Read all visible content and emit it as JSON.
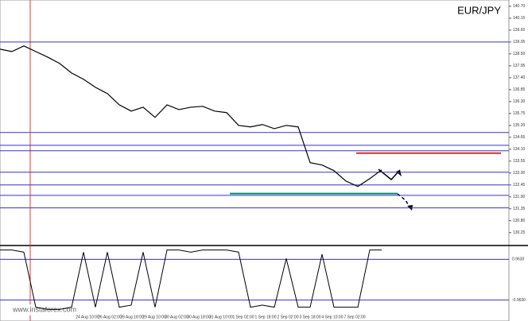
{
  "chart_data": {
    "type": "line",
    "title": "EUR/JPY",
    "watermark": "www.instaforex.com",
    "series": [
      {
        "name": "EUR/JPY",
        "color": "#000000",
        "values": [
          138.72,
          138.61,
          138.87,
          138.61,
          138.35,
          138.06,
          137.62,
          137.33,
          136.96,
          136.67,
          136.15,
          135.86,
          136.04,
          135.57,
          136.15,
          135.93,
          136.04,
          136.08,
          135.86,
          135.79,
          135.2,
          135.13,
          135.24,
          135.05,
          135.2,
          135.13,
          133.48,
          133.37,
          133.11,
          132.63,
          132.38,
          132.74,
          133.15
        ]
      }
    ],
    "ylim": [
      140.99,
      129.69
    ],
    "yticks": [
      {
        "value": 140.7,
        "label": "140.70"
      },
      {
        "value": 140.15,
        "label": "140.15"
      },
      {
        "value": 139.6,
        "label": "139.60"
      },
      {
        "value": 139.05,
        "label": "139.05"
      },
      {
        "value": 138.5,
        "label": "138.50"
      },
      {
        "value": 137.95,
        "label": "137.95"
      },
      {
        "value": 137.4,
        "label": "137.40"
      },
      {
        "value": 136.85,
        "label": "136.85"
      },
      {
        "value": 136.3,
        "label": "136.30"
      },
      {
        "value": 135.75,
        "label": "135.75"
      },
      {
        "value": 135.2,
        "label": "135.20"
      },
      {
        "value": 134.65,
        "label": "134.65"
      },
      {
        "value": 134.1,
        "label": "134.10"
      },
      {
        "value": 133.55,
        "label": "133.55"
      },
      {
        "value": 133.0,
        "label": "133.00"
      },
      {
        "value": 132.45,
        "label": "132.45"
      },
      {
        "value": 131.9,
        "label": "131.90"
      },
      {
        "value": 131.35,
        "label": "131.35"
      },
      {
        "value": 130.8,
        "label": "130.80"
      },
      {
        "value": 130.25,
        "label": "130.25"
      }
    ],
    "levels": [
      {
        "value": 139.05,
        "color": "#3333cc"
      },
      {
        "value": 134.87,
        "color": "#3333cc"
      },
      {
        "value": 134.28,
        "color": "#3333cc"
      },
      {
        "value": 134.03,
        "color": "#3333cc"
      },
      {
        "value": 133.04,
        "color": "#3333cc"
      },
      {
        "value": 132.45,
        "color": "#3333cc"
      },
      {
        "value": 131.97,
        "color": "#3333cc"
      },
      {
        "value": 131.39,
        "color": "#3333cc"
      }
    ],
    "resistance": {
      "value": 133.92,
      "color": "#cc3333"
    },
    "support": {
      "value": 132.05,
      "color": "#00896b"
    },
    "oscillator": {
      "color": "#000000",
      "values": [
        1.4,
        1.4,
        1.3,
        -1.3,
        -1.4,
        -1.4,
        -1.3,
        1.3,
        -1.3,
        1.3,
        -1.3,
        -1.2,
        1.3,
        -1.3,
        1.4,
        1.4,
        1.3,
        1.4,
        1.4,
        1.4,
        1.3,
        -1.3,
        -1.2,
        -1.3,
        1.0,
        -1.3,
        -1.3,
        1.2,
        -1.3,
        -1.3,
        -1.3,
        1.4,
        1.4
      ],
      "ylim": [
        -1.5,
        1.5
      ],
      "yticks": [
        {
          "value": 0.963,
          "label": "0.9630"
        },
        {
          "value": -0.963,
          "label": "-0.9630"
        }
      ]
    },
    "xticks": [
      "24 Aug 10:00",
      "26 Aug 02:00",
      "28 Aug 18:00",
      "29 Aug 10:00",
      "30 Aug 02:00",
      "30 Aug 18:00",
      "31 Aug 10:00",
      "1 Sep 02:00",
      "1 Sep 18:00",
      "2 Sep 02:00",
      "3 Sep 18:00",
      "4 Sep 10:00",
      "7 Sep 02:00"
    ]
  }
}
